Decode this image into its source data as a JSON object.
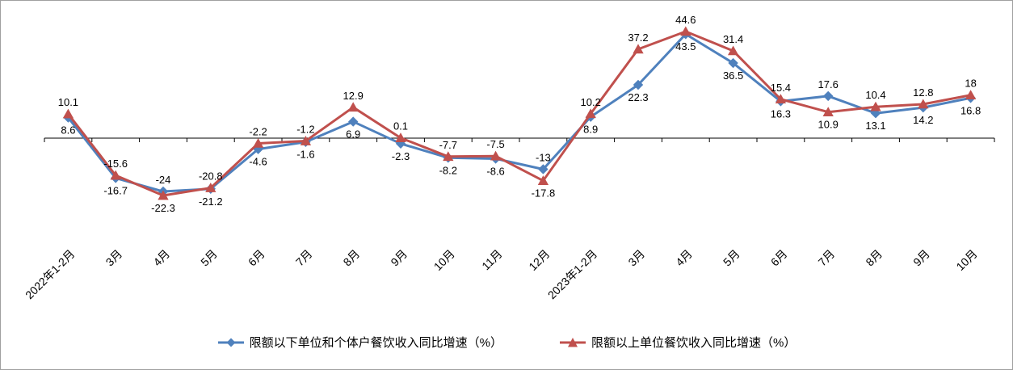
{
  "chart_data": {
    "type": "line",
    "title": "",
    "xlabel": "",
    "ylabel": "",
    "ylim": [
      -30,
      50
    ],
    "grid": false,
    "legend_position": "bottom",
    "zero_axis_line": true,
    "categories": [
      "2022年1-2月",
      "3月",
      "4月",
      "5月",
      "6月",
      "7月",
      "8月",
      "9月",
      "10月",
      "11月",
      "12月",
      "2023年1-2月",
      "3月",
      "4月",
      "5月",
      "6月",
      "7月",
      "8月",
      "9月",
      "10月"
    ],
    "series": [
      {
        "name": "限额以下单位和个体户餐饮收入同比增速（%）",
        "color": "#4F81BD",
        "marker": "diamond",
        "values": [
          8.6,
          -16.7,
          -22.3,
          -21.2,
          -4.6,
          -1.6,
          6.9,
          -2.3,
          -8.2,
          -8.6,
          -13,
          8.9,
          22.3,
          43.5,
          31.4,
          15.4,
          17.6,
          10.4,
          12.8,
          16.8
        ]
      },
      {
        "name": "限额以上单位餐饮收入同比增速（%）",
        "color": "#C0504D",
        "marker": "triangle",
        "values": [
          10.1,
          -15.6,
          -24,
          -20.8,
          -2.2,
          -1.2,
          12.9,
          0.1,
          -7.7,
          -7.5,
          -17.8,
          10.2,
          37.2,
          44.6,
          36.5,
          16.3,
          10.9,
          13.1,
          14.2,
          18
        ]
      }
    ],
    "data_labels": {
      "show": true,
      "top_series_index": [
        1,
        1,
        1,
        1,
        1,
        1,
        1,
        1,
        1,
        1,
        0,
        1,
        1,
        1,
        0,
        0,
        0,
        0,
        0,
        1
      ]
    },
    "axis_color": "#000000",
    "text_color": "#000000"
  }
}
